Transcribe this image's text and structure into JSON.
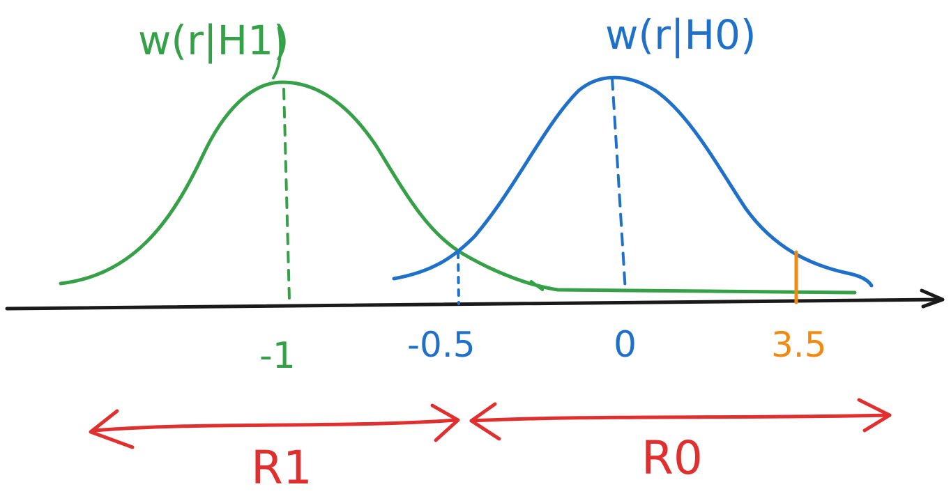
{
  "labels": {
    "h1_density": "w(r|H1)",
    "h0_density": "w(r|H0)",
    "tick_h1_mean": "-1",
    "tick_threshold": "-0.5",
    "tick_h0_mean": "0",
    "tick_observation": "3.5",
    "region_r1": "R1",
    "region_r0": "R0"
  },
  "colors": {
    "h1": "#35a047",
    "h0": "#1f70c9",
    "observation": "#f08a12",
    "regions": "#e02f2f",
    "axis": "#1a1a1a"
  }
}
